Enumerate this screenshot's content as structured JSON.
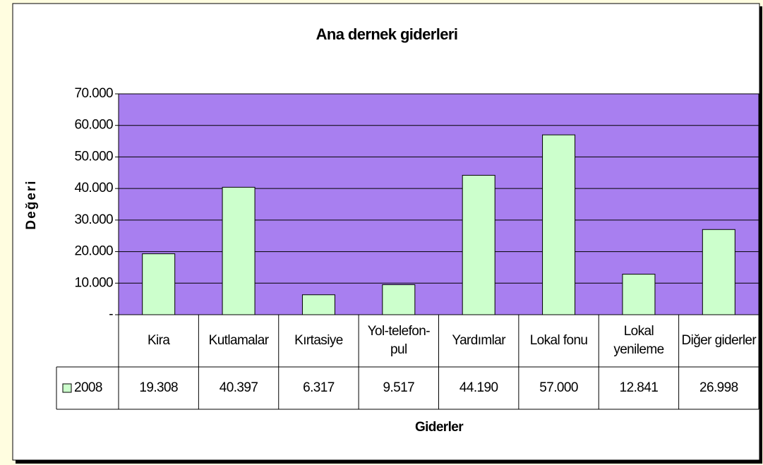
{
  "chart_data": {
    "type": "bar",
    "title": "Ana dernek giderleri",
    "x_label": "Giderler",
    "y_label": "Değeri",
    "categories": [
      "Kira",
      "Kutlamalar",
      "Kırtasiye",
      "Yol-telefon-pul",
      "Yardımlar",
      "Lokal fonu",
      "Lokal yenileme",
      "Diğer giderler"
    ],
    "series": [
      {
        "name": "2008",
        "color": "#ccffcc",
        "values": [
          19308,
          40397,
          6317,
          9517,
          44190,
          57000,
          12841,
          26998
        ],
        "value_labels": [
          "19.308",
          "40.397",
          "6.317",
          "9.517",
          "44.190",
          "57.000",
          "12.841",
          "26.998"
        ]
      }
    ],
    "ylim": [
      0,
      70000
    ],
    "yticks": [
      {
        "value": 0,
        "label": "-"
      },
      {
        "value": 10000,
        "label": "10.000"
      },
      {
        "value": 20000,
        "label": "20.000"
      },
      {
        "value": 30000,
        "label": "30.000"
      },
      {
        "value": 40000,
        "label": "40.000"
      },
      {
        "value": 50000,
        "label": "50.000"
      },
      {
        "value": 60000,
        "label": "60.000"
      },
      {
        "value": 70000,
        "label": "70.000"
      }
    ],
    "grid": true,
    "plot_background": "#a87ff0"
  }
}
